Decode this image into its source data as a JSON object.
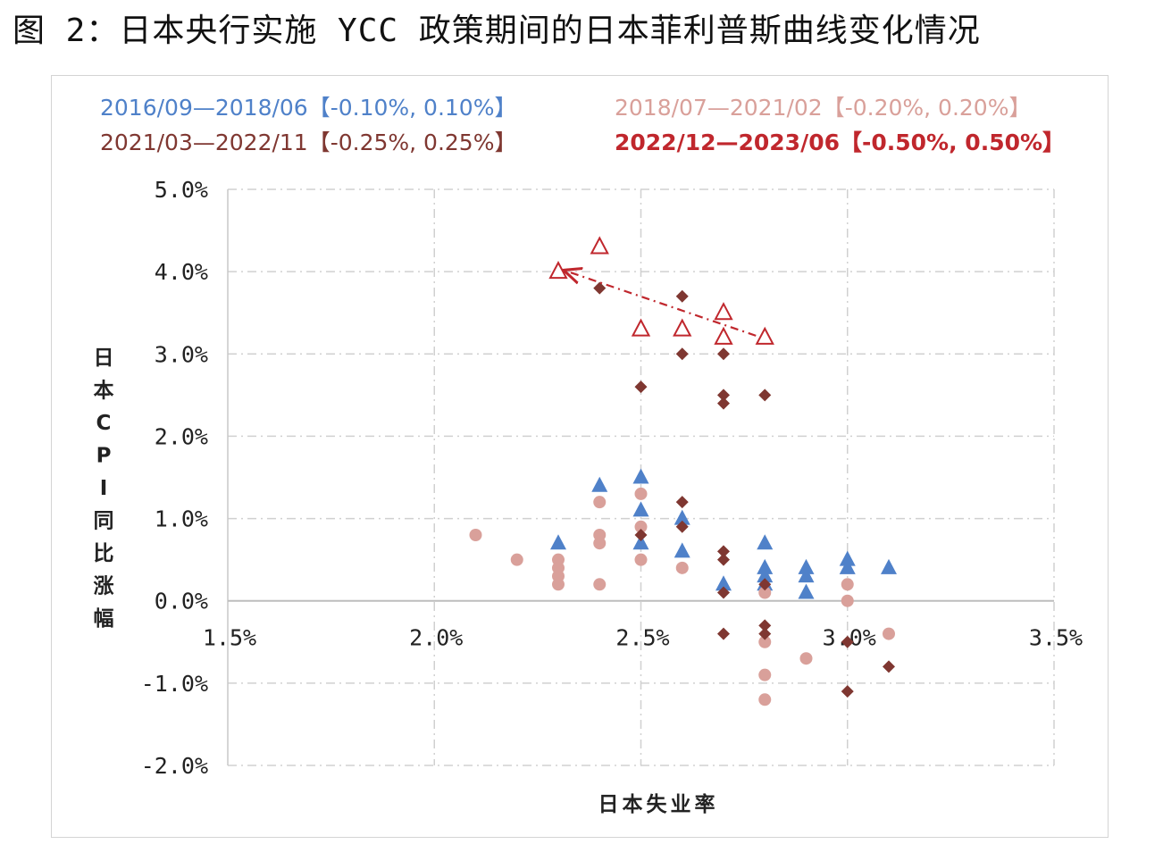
{
  "title": "图 2：日本央行实施 YCC 政策期间的日本菲利普斯曲线变化情况",
  "chart_data": {
    "type": "scatter",
    "xlabel": "日本失业率",
    "ylabel": "日本CPI同比涨幅",
    "xlim": [
      1.5,
      3.5
    ],
    "ylim": [
      -2.0,
      5.0
    ],
    "x_ticks": [
      "1.5%",
      "2.0%",
      "2.5%",
      "3.0%",
      "3.5%"
    ],
    "y_ticks": [
      "5.0%",
      "4.0%",
      "3.0%",
      "2.0%",
      "1.0%",
      "0.0%",
      "-1.0%",
      "-2.0%"
    ],
    "grid": true,
    "legend_position": "top",
    "series": [
      {
        "name": "2016/09—2018/06【-0.10%, 0.10%】",
        "marker": "triangle",
        "color": "#4f81c9",
        "points": [
          [
            2.3,
            0.7
          ],
          [
            2.4,
            1.4
          ],
          [
            2.5,
            1.5
          ],
          [
            2.5,
            1.1
          ],
          [
            2.5,
            0.7
          ],
          [
            2.6,
            1.0
          ],
          [
            2.6,
            0.6
          ],
          [
            2.7,
            0.2
          ],
          [
            2.8,
            0.7
          ],
          [
            2.8,
            0.4
          ],
          [
            2.8,
            0.3
          ],
          [
            2.8,
            0.2
          ],
          [
            2.9,
            0.4
          ],
          [
            2.9,
            0.3
          ],
          [
            2.9,
            0.1
          ],
          [
            3.0,
            0.5
          ],
          [
            3.0,
            0.4
          ],
          [
            3.1,
            0.4
          ]
        ]
      },
      {
        "name": "2018/07—2021/02【-0.20%, 0.20%】",
        "marker": "circle",
        "color": "#d9a09a",
        "points": [
          [
            2.1,
            0.8
          ],
          [
            2.2,
            0.5
          ],
          [
            2.3,
            0.5
          ],
          [
            2.3,
            0.4
          ],
          [
            2.3,
            0.3
          ],
          [
            2.3,
            0.2
          ],
          [
            2.4,
            1.2
          ],
          [
            2.4,
            0.8
          ],
          [
            2.4,
            0.7
          ],
          [
            2.4,
            0.2
          ],
          [
            2.5,
            1.3
          ],
          [
            2.5,
            0.9
          ],
          [
            2.5,
            0.5
          ],
          [
            2.6,
            0.4
          ],
          [
            2.8,
            0.1
          ],
          [
            2.8,
            -0.5
          ],
          [
            2.8,
            -0.9
          ],
          [
            2.8,
            -1.2
          ],
          [
            2.9,
            -0.7
          ],
          [
            3.0,
            0.2
          ],
          [
            3.0,
            0.0
          ],
          [
            3.1,
            -0.4
          ]
        ]
      },
      {
        "name": "2021/03—2022/11【-0.25%, 0.25%】",
        "marker": "diamond",
        "color": "#7f3731",
        "points": [
          [
            2.4,
            3.8
          ],
          [
            2.5,
            2.6
          ],
          [
            2.5,
            0.8
          ],
          [
            2.6,
            3.7
          ],
          [
            2.6,
            3.0
          ],
          [
            2.6,
            1.2
          ],
          [
            2.6,
            0.9
          ],
          [
            2.7,
            3.0
          ],
          [
            2.7,
            2.5
          ],
          [
            2.7,
            2.4
          ],
          [
            2.7,
            0.6
          ],
          [
            2.7,
            0.5
          ],
          [
            2.7,
            0.1
          ],
          [
            2.7,
            -0.4
          ],
          [
            2.8,
            2.5
          ],
          [
            2.8,
            0.2
          ],
          [
            2.8,
            -0.3
          ],
          [
            2.8,
            -0.4
          ],
          [
            3.0,
            -0.5
          ],
          [
            3.0,
            -1.1
          ],
          [
            3.1,
            -0.8
          ]
        ]
      },
      {
        "name": "2022/12—2023/06【-0.50%, 0.50%】",
        "marker": "triangle-open",
        "color": "#c0272d",
        "points": [
          [
            2.3,
            4.0
          ],
          [
            2.4,
            4.3
          ],
          [
            2.5,
            3.3
          ],
          [
            2.6,
            3.3
          ],
          [
            2.7,
            3.5
          ],
          [
            2.7,
            3.2
          ],
          [
            2.8,
            3.2
          ]
        ]
      }
    ],
    "annotation": {
      "type": "trend-arrow",
      "from": [
        2.8,
        3.2
      ],
      "to": [
        2.3,
        4.0
      ],
      "style": "dash-dot",
      "color": "#c0272d"
    }
  }
}
